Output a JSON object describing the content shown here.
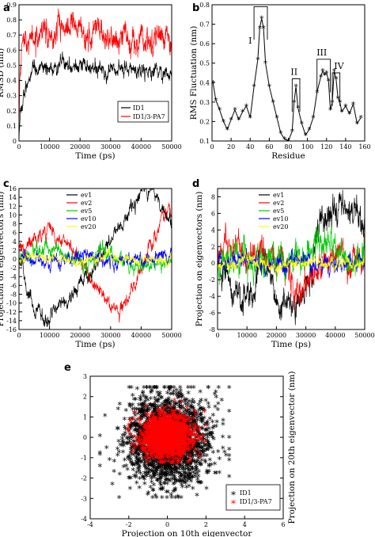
{
  "figure": {
    "panels": [
      "a",
      "b",
      "c",
      "d",
      "e"
    ]
  },
  "chart_data": [
    {
      "type": "line",
      "panel": "a",
      "xlabel": "Time (ps)",
      "ylabel": "RMSD (nm)",
      "xlim": [
        0,
        50000
      ],
      "ylim": [
        0,
        0.9
      ],
      "xticks": [
        "0",
        "10000",
        "20000",
        "30000",
        "40000",
        "50000"
      ],
      "yticks": [
        "0",
        "0.1",
        "0.2",
        "0.3",
        "0.4",
        "0.5",
        "0.6",
        "0.7",
        "0.8",
        "0.9"
      ],
      "legend_position": "bottom-right",
      "series": [
        {
          "name": "ID1",
          "color": "#000000",
          "x": [
            0,
            500,
            1500,
            3000,
            5000,
            8000,
            12000,
            15000,
            18000,
            22000,
            26000,
            30000,
            34000,
            38000,
            42000,
            46000,
            50000
          ],
          "y": [
            0.0,
            0.2,
            0.3,
            0.38,
            0.44,
            0.47,
            0.5,
            0.52,
            0.5,
            0.48,
            0.47,
            0.46,
            0.47,
            0.46,
            0.45,
            0.46,
            0.45
          ]
        },
        {
          "name": "ID1/3-PA7",
          "color": "#ff0000",
          "x": [
            0,
            300,
            1000,
            2000,
            4000,
            8000,
            12000,
            16000,
            20000,
            24000,
            28000,
            32000,
            36000,
            40000,
            44000,
            48000,
            50000
          ],
          "y": [
            0.0,
            0.35,
            0.55,
            0.62,
            0.66,
            0.68,
            0.72,
            0.76,
            0.73,
            0.7,
            0.68,
            0.67,
            0.68,
            0.66,
            0.67,
            0.66,
            0.65
          ]
        }
      ]
    },
    {
      "type": "line",
      "panel": "b",
      "xlabel": "Residue",
      "ylabel": "RMS Fluctuation (nm)",
      "xlim": [
        0,
        160
      ],
      "ylim": [
        0.1,
        0.8
      ],
      "xticks": [
        "0",
        "20",
        "40",
        "60",
        "80",
        "100",
        "120",
        "140",
        "160"
      ],
      "yticks": [
        "0.1",
        "0.2",
        "0.3",
        "0.4",
        "0.5",
        "0.6",
        "0.7",
        "0.8"
      ],
      "annotations": [
        "I",
        "II",
        "III",
        "IV"
      ],
      "series": [
        {
          "name": "",
          "color": "#000000",
          "x": [
            1,
            4,
            8,
            12,
            16,
            20,
            24,
            28,
            32,
            36,
            40,
            44,
            48,
            50,
            52,
            54,
            56,
            60,
            64,
            68,
            72,
            76,
            80,
            84,
            86,
            88,
            90,
            94,
            98,
            102,
            106,
            110,
            114,
            116,
            118,
            120,
            122,
            124,
            126,
            128,
            130,
            132,
            134,
            136,
            140,
            144,
            148,
            152,
            156
          ],
          "y": [
            0.4,
            0.31,
            0.26,
            0.2,
            0.16,
            0.21,
            0.26,
            0.21,
            0.25,
            0.28,
            0.22,
            0.38,
            0.52,
            0.68,
            0.73,
            0.68,
            0.5,
            0.38,
            0.3,
            0.22,
            0.14,
            0.11,
            0.1,
            0.15,
            0.3,
            0.38,
            0.27,
            0.19,
            0.13,
            0.16,
            0.22,
            0.35,
            0.43,
            0.46,
            0.44,
            0.45,
            0.41,
            0.26,
            0.3,
            0.46,
            0.42,
            0.32,
            0.3,
            0.25,
            0.28,
            0.24,
            0.29,
            0.19,
            0.22
          ]
        }
      ]
    },
    {
      "type": "line",
      "panel": "c",
      "xlabel": "Time (ps)",
      "ylabel": "Projection on eigenvectors (nm)",
      "xlim": [
        0,
        50000
      ],
      "ylim": [
        -16,
        16
      ],
      "xticks": [
        "0",
        "10000",
        "20000",
        "30000",
        "40000",
        "50000"
      ],
      "yticks": [
        "-16",
        "-14",
        "-12",
        "-10",
        "-8",
        "-6",
        "-4",
        "-2",
        "0",
        "2",
        "4",
        "6",
        "8",
        "10",
        "12",
        "14",
        "16"
      ],
      "legend_position": "top-left",
      "series": [
        {
          "name": "ev1",
          "color": "#000000",
          "x": [
            0,
            2500,
            5000,
            7500,
            10000,
            15000,
            20000,
            25000,
            28000,
            32000,
            36000,
            40000,
            44000,
            47000,
            50000
          ],
          "y": [
            0,
            -6,
            -11,
            -13,
            -14,
            -10,
            -6,
            -2,
            2,
            6,
            10,
            15,
            16,
            12,
            8
          ]
        },
        {
          "name": "ev2",
          "color": "#ff0000",
          "x": [
            0,
            5000,
            10000,
            15000,
            20000,
            25000,
            28000,
            32000,
            36000,
            40000,
            44000,
            47000,
            50000
          ],
          "y": [
            2,
            4,
            7,
            4,
            0,
            -6,
            -10,
            -12,
            -8,
            -3,
            4,
            10,
            13
          ]
        },
        {
          "name": "ev5",
          "color": "#00cc00",
          "x": [
            0,
            10000,
            20000,
            30000,
            40000,
            50000
          ],
          "y": [
            0,
            2,
            -1,
            1,
            -2,
            0
          ]
        },
        {
          "name": "ev10",
          "color": "#0000ff",
          "x": [
            0,
            10000,
            20000,
            30000,
            40000,
            50000
          ],
          "y": [
            0,
            -1,
            1,
            -1,
            0,
            1
          ]
        },
        {
          "name": "ev20",
          "color": "#ffff00",
          "x": [
            0,
            10000,
            20000,
            30000,
            40000,
            50000
          ],
          "y": [
            0,
            0.5,
            -0.5,
            0.3,
            -0.3,
            0
          ]
        }
      ]
    },
    {
      "type": "line",
      "panel": "d",
      "xlabel": "Time (ps)",
      "ylabel": "Projection on eigenvectors (nm)",
      "xlim": [
        0,
        50000
      ],
      "ylim": [
        -8,
        9
      ],
      "xticks": [
        "0",
        "10000",
        "20000",
        "30000",
        "40000",
        "50000"
      ],
      "yticks": [
        "-8",
        "-6",
        "-4",
        "-2",
        "0",
        "2",
        "4",
        "6",
        "8"
      ],
      "legend_position": "top-right",
      "series": [
        {
          "name": "ev1",
          "color": "#000000",
          "x": [
            0,
            3000,
            8000,
            12000,
            16000,
            20000,
            24000,
            28000,
            32000,
            34000,
            38000,
            42000,
            46000,
            50000
          ],
          "y": [
            0,
            -2,
            -4,
            -3,
            1,
            -4,
            -5,
            -4,
            -2,
            4,
            6,
            7,
            6,
            5
          ]
        },
        {
          "name": "ev2",
          "color": "#ff0000",
          "x": [
            0,
            5000,
            10000,
            15000,
            20000,
            25000,
            30000,
            35000,
            40000,
            45000,
            50000
          ],
          "y": [
            1,
            2,
            1,
            2,
            1,
            -2,
            -3,
            0,
            1,
            0,
            1
          ]
        },
        {
          "name": "ev5",
          "color": "#00cc00",
          "x": [
            0,
            10000,
            20000,
            30000,
            35000,
            40000,
            45000,
            50000
          ],
          "y": [
            0,
            1,
            0,
            1,
            3,
            1,
            0,
            1
          ]
        },
        {
          "name": "ev10",
          "color": "#0000ff",
          "x": [
            0,
            10000,
            20000,
            30000,
            40000,
            50000
          ],
          "y": [
            0,
            0.5,
            -0.5,
            0.5,
            -0.5,
            0
          ]
        },
        {
          "name": "ev20",
          "color": "#ffff00",
          "x": [
            0,
            10000,
            20000,
            30000,
            40000,
            50000
          ],
          "y": [
            0,
            0.3,
            -0.3,
            0.2,
            -0.2,
            0
          ]
        }
      ]
    },
    {
      "type": "scatter",
      "panel": "e",
      "xlabel": "Projection on 10th eigenvector",
      "ylabel": "Projection on 20th eigenvector (nm)",
      "xlim": [
        -4,
        6
      ],
      "ylim": [
        -4,
        3
      ],
      "xticks": [
        "-4",
        "-2",
        "0",
        "2",
        "4",
        "6"
      ],
      "yticks": [
        "-4",
        "-3",
        "-2",
        "-1",
        "0",
        "1",
        "2",
        "3"
      ],
      "legend_position": "bottom-right",
      "series": [
        {
          "name": "ID1",
          "color": "#000000",
          "marker": "*",
          "center": [
            0,
            -0.2
          ],
          "spread": [
            1.1,
            1.1
          ],
          "range_x": [
            -3.5,
            3.2
          ],
          "range_y": [
            -3.0,
            2.4
          ]
        },
        {
          "name": "ID1/3-PA7",
          "color": "#ff0000",
          "marker": "*",
          "center": [
            0,
            0
          ],
          "spread": [
            0.65,
            0.5
          ],
          "range_x": [
            -2.2,
            2.3
          ],
          "range_y": [
            -1.3,
            1.8
          ]
        }
      ]
    }
  ]
}
